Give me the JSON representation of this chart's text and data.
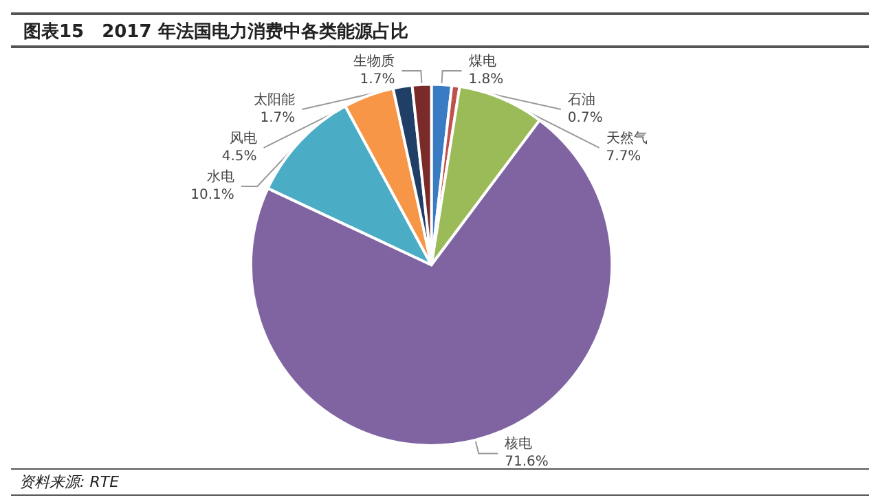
{
  "chart_data": {
    "type": "pie",
    "title": "图表15　2017 年法国电力消费中各类能源占比",
    "categories": [
      "煤电",
      "石油",
      "天然气",
      "核电",
      "水电",
      "风电",
      "太阳能",
      "生物质"
    ],
    "values": [
      1.8,
      0.7,
      7.7,
      71.6,
      10.1,
      4.5,
      1.7,
      1.7
    ],
    "colors": [
      "#3a7cc4",
      "#c0504d",
      "#9bbb59",
      "#8064a2",
      "#4bacc6",
      "#f79646",
      "#1f3f66",
      "#7b2a2a"
    ],
    "value_labels": [
      "1.8%",
      "0.7%",
      "7.7%",
      "71.6%",
      "10.1%",
      "4.5%",
      "1.7%",
      "1.7%"
    ],
    "annotations": [
      "资料来源: RTE"
    ]
  }
}
